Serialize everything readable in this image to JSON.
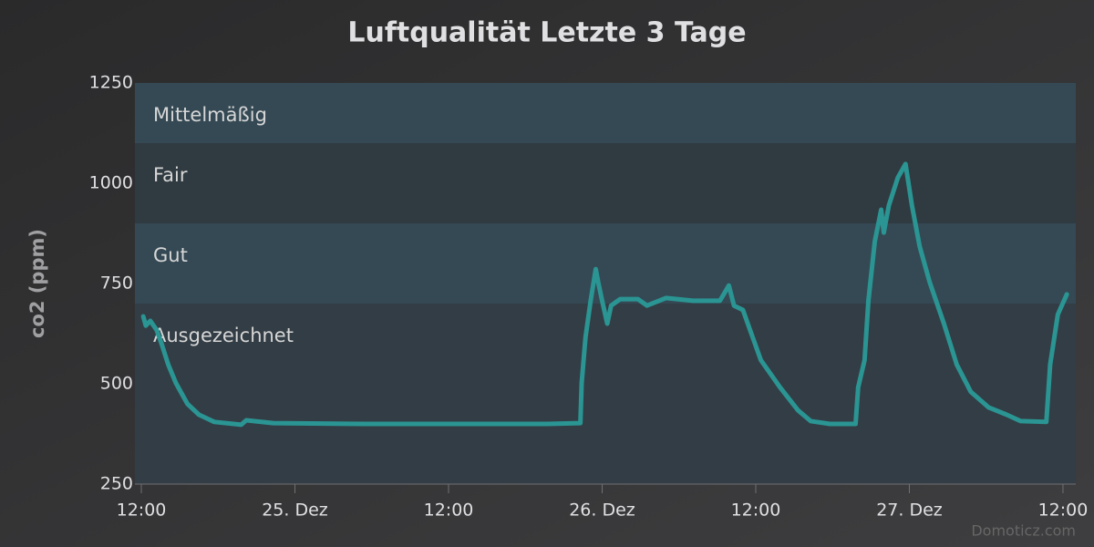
{
  "chart_data": {
    "type": "line",
    "title": "Luftqualität Letzte 3 Tage",
    "y_label": "co2 (ppm)",
    "credit": "Domoticz.com",
    "x": [
      0.15,
      0.35,
      0.7,
      1.2,
      1.6,
      2.1,
      2.7,
      3.6,
      4.5,
      5.7,
      7.8,
      8.2,
      10.3,
      17.5,
      24.6,
      31.7,
      34.3,
      34.4,
      34.7,
      35.1,
      35.5,
      35.7,
      36.0,
      36.4,
      36.7,
      37.4,
      38.8,
      39.5,
      41.0,
      43.1,
      45.2,
      45.9,
      46.3,
      47.0,
      47.5,
      48.4,
      49.9,
      51.3,
      52.3,
      53.8,
      55.8,
      56.0,
      56.5,
      56.8,
      57.3,
      57.8,
      58.0,
      58.4,
      59.1,
      59.7,
      60.2,
      60.8,
      61.6,
      62.7,
      63.7,
      64.8,
      66.2,
      67.6,
      68.7,
      70.7,
      71.0,
      71.6,
      72.3
    ],
    "series": [
      {
        "name": "co2",
        "color": "#2a9593",
        "values": [
          668,
          645,
          657,
          634,
          598,
          548,
          502,
          450,
          423,
          405,
          398,
          409,
          402,
          400,
          400,
          400,
          402,
          502,
          616,
          707,
          786,
          752,
          707,
          650,
          695,
          711,
          711,
          695,
          714,
          707,
          707,
          745,
          695,
          684,
          639,
          559,
          491,
          434,
          407,
          400,
          400,
          491,
          559,
          707,
          855,
          934,
          877,
          945,
          1014,
          1048,
          945,
          843,
          752,
          650,
          548,
          480,
          441,
          423,
          407,
          405,
          548,
          673,
          723
        ]
      }
    ],
    "xlim": [
      -0.5,
      73
    ],
    "xticks": [
      {
        "value": 0,
        "label": "12:00"
      },
      {
        "value": 12,
        "label": "25. Dez"
      },
      {
        "value": 24,
        "label": "12:00"
      },
      {
        "value": 36,
        "label": "26. Dez"
      },
      {
        "value": 48,
        "label": "12:00"
      },
      {
        "value": 60,
        "label": "27. Dez"
      },
      {
        "value": 72,
        "label": "12:00"
      }
    ],
    "ylim": [
      250,
      1250
    ],
    "yticks": [
      250,
      500,
      750,
      1000,
      1250
    ],
    "plot_bands": [
      {
        "from": 1100,
        "to": 1250,
        "label": "Mittelmäßig",
        "color": "#344954"
      },
      {
        "from": 900,
        "to": 1100,
        "label": "Fair",
        "color": "#303a41"
      },
      {
        "from": 700,
        "to": 900,
        "label": "Gut",
        "color": "#344954"
      },
      {
        "from": 250,
        "to": 700,
        "label": "Ausgezeichnet",
        "color": "#333d45"
      }
    ]
  }
}
